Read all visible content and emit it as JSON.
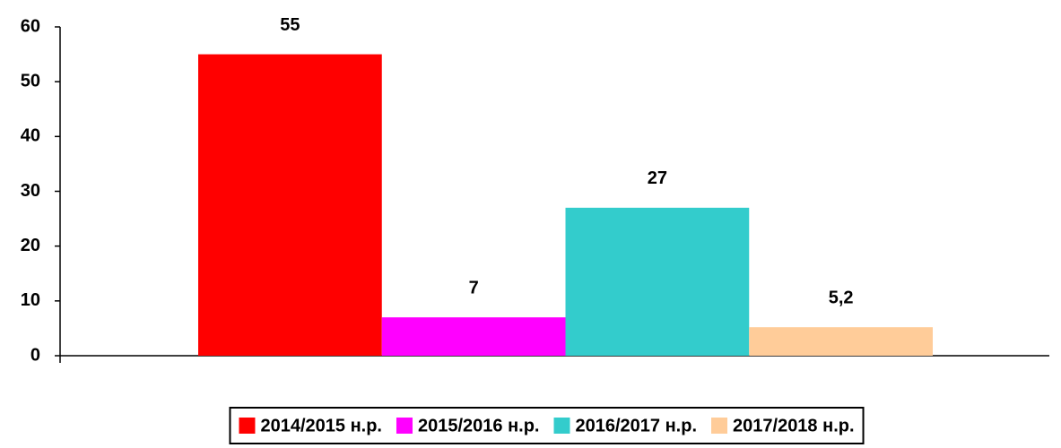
{
  "chart_data": {
    "type": "bar",
    "categories": [
      null
    ],
    "series": [
      {
        "name": "2014/2015 н.р.",
        "color": "#ff0000",
        "values": [
          55
        ]
      },
      {
        "name": "2015/2016 н.р.",
        "color": "#ff00ff",
        "values": [
          7
        ]
      },
      {
        "name": "2016/2017 н.р.",
        "color": "#33cccc",
        "values": [
          27
        ]
      },
      {
        "name": "2017/2018 н.р.",
        "color": "#ffcc99",
        "values": [
          5.2
        ],
        "value_labels": [
          "5,2"
        ]
      }
    ],
    "ylim": [
      0,
      60
    ],
    "yticks": [
      0,
      10,
      20,
      30,
      40,
      50,
      60
    ],
    "grid": false,
    "legend": "bottom"
  }
}
